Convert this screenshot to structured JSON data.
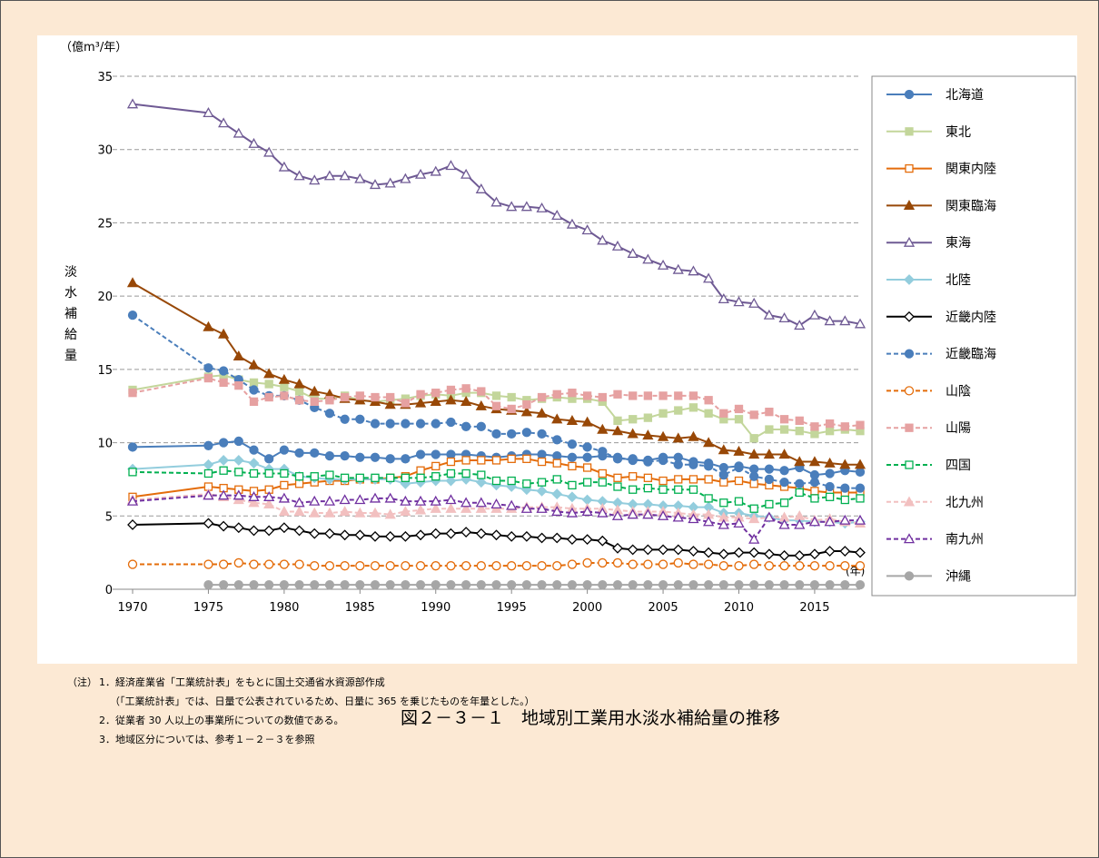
{
  "chart_data": {
    "type": "line",
    "title": "図２－３－１　地域別工業用水淡水補給量の推移",
    "y_unit": "（億m³/年）",
    "x_unit": "(年)",
    "y_label": "淡水補給量",
    "notes_prefix": "（注）",
    "notes": [
      "1．経済産業省「工業統計表」をもとに国土交通省水資源部作成",
      "（「工業統計表」では、日量で公表されているため、日量に 365 を乗じたものを年量とした。）",
      "2．従業者 30 人以上の事業所についての数値である。",
      "3．地域区分については、参考１－２－３を参照"
    ],
    "x": [
      1970,
      1975,
      1976,
      1977,
      1978,
      1979,
      1980,
      1981,
      1982,
      1983,
      1984,
      1985,
      1986,
      1987,
      1988,
      1989,
      1990,
      1991,
      1992,
      1993,
      1994,
      1995,
      1996,
      1997,
      1998,
      1999,
      2000,
      2001,
      2002,
      2003,
      2004,
      2005,
      2006,
      2007,
      2008,
      2009,
      2010,
      2011,
      2012,
      2013,
      2014,
      2015,
      2016,
      2017,
      2018
    ],
    "xlim": [
      1970,
      2018
    ],
    "xticks": [
      1970,
      1975,
      1980,
      1985,
      1990,
      1995,
      2000,
      2005,
      2010,
      2015
    ],
    "ylim": [
      0,
      35
    ],
    "yticks": [
      0,
      5,
      10,
      15,
      20,
      25,
      30,
      35
    ],
    "grid": true,
    "legend": "right",
    "series": [
      {
        "name": "北海道",
        "color": "#4a7ebb",
        "marker": "circle",
        "filled": true,
        "dashed": false,
        "values": [
          9.7,
          9.8,
          10.0,
          10.1,
          9.5,
          8.9,
          9.5,
          9.3,
          9.3,
          9.1,
          9.1,
          9.0,
          9.0,
          8.9,
          8.9,
          9.2,
          9.2,
          9.2,
          9.2,
          9.1,
          9.0,
          9.1,
          9.2,
          9.2,
          9.1,
          9.0,
          9.0,
          9.1,
          9.0,
          8.8,
          8.8,
          9.0,
          9.0,
          8.7,
          8.6,
          8.3,
          8.4,
          8.2,
          8.2,
          8.1,
          8.3,
          7.8,
          7.9,
          8.1,
          8.0
        ]
      },
      {
        "name": "東北",
        "color": "#c3d69b",
        "marker": "square",
        "filled": true,
        "dashed": false,
        "values": [
          13.6,
          14.5,
          14.6,
          14.3,
          14.1,
          14.0,
          13.8,
          13.5,
          13.0,
          13.0,
          13.2,
          12.9,
          12.8,
          12.9,
          13.0,
          13.2,
          13.3,
          13.2,
          13.4,
          13.4,
          13.2,
          13.1,
          12.9,
          13.0,
          13.1,
          13.0,
          13.0,
          12.8,
          11.5,
          11.6,
          11.7,
          12.0,
          12.2,
          12.4,
          12.0,
          11.6,
          11.6,
          10.3,
          10.9,
          10.9,
          10.8,
          10.6,
          10.8,
          10.9,
          10.8
        ]
      },
      {
        "name": "関東内陸",
        "color": "#e46c0a",
        "marker": "square",
        "filled": false,
        "dashed": false,
        "values": [
          6.3,
          7.0,
          6.9,
          6.8,
          6.7,
          6.8,
          7.1,
          7.2,
          7.3,
          7.4,
          7.4,
          7.5,
          7.5,
          7.6,
          7.7,
          8.1,
          8.4,
          8.7,
          8.8,
          8.8,
          8.8,
          8.9,
          8.9,
          8.7,
          8.6,
          8.4,
          8.3,
          7.9,
          7.6,
          7.7,
          7.6,
          7.4,
          7.5,
          7.5,
          7.5,
          7.3,
          7.4,
          7.2,
          7.1,
          7.0,
          6.9,
          6.7,
          6.6,
          6.6,
          6.6
        ]
      },
      {
        "name": "関東臨海",
        "color": "#984807",
        "marker": "triangle",
        "filled": true,
        "dashed": false,
        "values": [
          20.9,
          17.9,
          17.4,
          15.9,
          15.3,
          14.7,
          14.3,
          14.0,
          13.5,
          13.3,
          13.0,
          12.9,
          12.8,
          12.6,
          12.6,
          12.7,
          12.8,
          12.9,
          12.8,
          12.5,
          12.3,
          12.2,
          12.1,
          12.0,
          11.6,
          11.5,
          11.4,
          10.9,
          10.8,
          10.6,
          10.5,
          10.4,
          10.3,
          10.4,
          10.0,
          9.5,
          9.4,
          9.2,
          9.2,
          9.2,
          8.7,
          8.7,
          8.6,
          8.5,
          8.5
        ]
      },
      {
        "name": "東海",
        "color": "#6f5a94",
        "marker": "triangle",
        "filled": false,
        "dashed": false,
        "values": [
          33.1,
          32.5,
          31.8,
          31.1,
          30.4,
          29.8,
          28.8,
          28.2,
          27.9,
          28.2,
          28.2,
          28.0,
          27.6,
          27.7,
          28.0,
          28.3,
          28.5,
          28.9,
          28.3,
          27.3,
          26.4,
          26.1,
          26.1,
          26.0,
          25.5,
          24.9,
          24.5,
          23.8,
          23.4,
          22.9,
          22.5,
          22.1,
          21.8,
          21.7,
          21.2,
          19.8,
          19.6,
          19.5,
          18.7,
          18.5,
          18.0,
          18.7,
          18.3,
          18.3,
          18.1
        ]
      },
      {
        "name": "北陸",
        "color": "#93cddd",
        "marker": "diamond",
        "filled": true,
        "dashed": false,
        "values": [
          8.2,
          8.5,
          8.8,
          8.8,
          8.6,
          8.2,
          8.2,
          7.7,
          7.6,
          7.5,
          7.5,
          7.5,
          7.5,
          7.5,
          7.2,
          7.3,
          7.4,
          7.4,
          7.5,
          7.3,
          7.1,
          7.0,
          6.8,
          6.7,
          6.5,
          6.3,
          6.1,
          6.0,
          5.9,
          5.8,
          5.8,
          5.7,
          5.7,
          5.6,
          5.6,
          5.2,
          5.2,
          5.0,
          4.9,
          4.7,
          4.7,
          4.6,
          4.6,
          4.5,
          4.6
        ]
      },
      {
        "name": "近畿内陸",
        "color": "#000000",
        "marker": "diamond",
        "filled": false,
        "dashed": false,
        "values": [
          4.4,
          4.5,
          4.3,
          4.2,
          4.0,
          4.0,
          4.2,
          4.0,
          3.8,
          3.8,
          3.7,
          3.7,
          3.6,
          3.6,
          3.6,
          3.7,
          3.8,
          3.8,
          3.9,
          3.8,
          3.7,
          3.6,
          3.6,
          3.5,
          3.5,
          3.4,
          3.4,
          3.3,
          2.8,
          2.7,
          2.7,
          2.7,
          2.7,
          2.6,
          2.5,
          2.4,
          2.5,
          2.5,
          2.4,
          2.3,
          2.3,
          2.4,
          2.6,
          2.6,
          2.5
        ]
      },
      {
        "name": "近畿臨海",
        "color": "#4a7ebb",
        "marker": "circle",
        "filled": true,
        "dashed": true,
        "values": [
          18.7,
          15.1,
          14.9,
          14.3,
          13.6,
          13.2,
          13.2,
          12.9,
          12.4,
          12.0,
          11.6,
          11.6,
          11.3,
          11.3,
          11.3,
          11.3,
          11.3,
          11.4,
          11.1,
          11.1,
          10.6,
          10.6,
          10.7,
          10.6,
          10.2,
          9.9,
          9.7,
          9.4,
          8.9,
          8.9,
          8.7,
          8.8,
          8.5,
          8.5,
          8.4,
          7.8,
          8.3,
          7.7,
          7.5,
          7.3,
          7.2,
          7.3,
          7.0,
          6.9,
          6.9
        ]
      },
      {
        "name": "山陰",
        "color": "#e46c0a",
        "marker": "circle",
        "filled": false,
        "dashed": true,
        "values": [
          1.7,
          1.7,
          1.7,
          1.8,
          1.7,
          1.7,
          1.7,
          1.7,
          1.6,
          1.6,
          1.6,
          1.6,
          1.6,
          1.6,
          1.6,
          1.6,
          1.6,
          1.6,
          1.6,
          1.6,
          1.6,
          1.6,
          1.6,
          1.6,
          1.6,
          1.7,
          1.8,
          1.8,
          1.8,
          1.7,
          1.7,
          1.7,
          1.8,
          1.7,
          1.7,
          1.6,
          1.6,
          1.7,
          1.6,
          1.6,
          1.6,
          1.6,
          1.6,
          1.6,
          1.6
        ]
      },
      {
        "name": "山陽",
        "color": "#e6a1a1",
        "marker": "square",
        "filled": true,
        "dashed": true,
        "values": [
          13.4,
          14.4,
          14.1,
          13.9,
          12.8,
          13.1,
          13.2,
          12.9,
          12.8,
          12.9,
          13.1,
          13.2,
          13.1,
          13.1,
          12.7,
          13.3,
          13.4,
          13.6,
          13.7,
          13.5,
          12.5,
          12.3,
          12.6,
          13.1,
          13.3,
          13.4,
          13.2,
          13.1,
          13.3,
          13.2,
          13.2,
          13.2,
          13.2,
          13.2,
          12.9,
          12.0,
          12.3,
          11.9,
          12.1,
          11.6,
          11.5,
          11.1,
          11.3,
          11.1,
          11.2
        ]
      },
      {
        "name": "四国",
        "color": "#00b050",
        "marker": "square",
        "filled": false,
        "dashed": true,
        "values": [
          8.0,
          7.9,
          8.1,
          8.0,
          7.9,
          7.9,
          7.9,
          7.7,
          7.7,
          7.8,
          7.6,
          7.6,
          7.6,
          7.6,
          7.6,
          7.6,
          7.7,
          7.9,
          7.9,
          7.8,
          7.4,
          7.4,
          7.2,
          7.3,
          7.5,
          7.1,
          7.3,
          7.3,
          7.0,
          6.8,
          6.9,
          6.8,
          6.8,
          6.8,
          6.2,
          5.9,
          6.0,
          5.5,
          5.8,
          5.9,
          6.6,
          6.2,
          6.3,
          6.1,
          6.2
        ]
      },
      {
        "name": "北九州",
        "color": "#f2c0c0",
        "marker": "triangle",
        "filled": true,
        "dashed": true,
        "values": [
          6.1,
          6.5,
          6.3,
          6.1,
          5.9,
          5.8,
          5.3,
          5.3,
          5.2,
          5.2,
          5.3,
          5.2,
          5.2,
          5.1,
          5.3,
          5.4,
          5.5,
          5.5,
          5.5,
          5.5,
          5.5,
          5.5,
          5.6,
          5.6,
          5.6,
          5.5,
          5.5,
          5.5,
          5.4,
          5.3,
          5.3,
          5.3,
          5.2,
          5.1,
          5.1,
          4.9,
          4.9,
          4.8,
          4.9,
          4.9,
          5.0,
          4.7,
          4.8,
          4.6,
          4.5
        ]
      },
      {
        "name": "南九州",
        "color": "#7030a0",
        "marker": "triangle",
        "filled": false,
        "dashed": true,
        "values": [
          6.0,
          6.4,
          6.4,
          6.4,
          6.3,
          6.3,
          6.2,
          5.9,
          6.0,
          6.0,
          6.1,
          6.1,
          6.2,
          6.2,
          6.0,
          6.0,
          6.0,
          6.1,
          5.9,
          5.9,
          5.8,
          5.7,
          5.5,
          5.5,
          5.3,
          5.2,
          5.3,
          5.2,
          5.0,
          5.1,
          5.1,
          5.0,
          4.9,
          4.8,
          4.6,
          4.4,
          4.5,
          3.4,
          4.9,
          4.4,
          4.4,
          4.6,
          4.6,
          4.7,
          4.7
        ]
      },
      {
        "name": "沖縄",
        "color": "#a6a6a6",
        "marker": "circle",
        "filled": true,
        "dashed": false,
        "values": [
          null,
          0.3,
          0.3,
          0.3,
          0.3,
          0.3,
          0.3,
          0.3,
          0.3,
          0.3,
          0.3,
          0.3,
          0.3,
          0.3,
          0.3,
          0.3,
          0.3,
          0.3,
          0.3,
          0.3,
          0.3,
          0.3,
          0.3,
          0.3,
          0.3,
          0.3,
          0.3,
          0.3,
          0.3,
          0.3,
          0.3,
          0.3,
          0.3,
          0.3,
          0.3,
          0.3,
          0.3,
          0.3,
          0.3,
          0.3,
          0.3,
          0.3,
          0.3,
          0.3,
          0.3
        ]
      }
    ]
  }
}
